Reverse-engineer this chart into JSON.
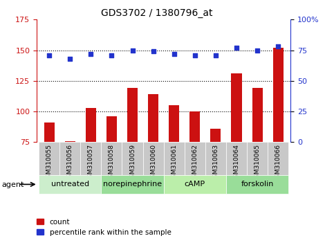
{
  "title": "GDS3702 / 1380796_at",
  "samples": [
    "GSM310055",
    "GSM310056",
    "GSM310057",
    "GSM310058",
    "GSM310059",
    "GSM310060",
    "GSM310061",
    "GSM310062",
    "GSM310063",
    "GSM310064",
    "GSM310065",
    "GSM310066"
  ],
  "count_values": [
    91,
    76,
    103,
    96,
    119,
    114,
    105,
    100,
    86,
    131,
    119,
    152
  ],
  "percentile_values": [
    71,
    68,
    72,
    71,
    75,
    74,
    72,
    71,
    71,
    77,
    75,
    78
  ],
  "ylim_left": [
    75,
    175
  ],
  "ylim_right": [
    0,
    100
  ],
  "yticks_left": [
    75,
    100,
    125,
    150,
    175
  ],
  "yticks_right": [
    0,
    25,
    50,
    75,
    100
  ],
  "agent_groups": [
    {
      "label": "untreated",
      "start": 0,
      "end": 3
    },
    {
      "label": "norepinephrine",
      "start": 3,
      "end": 6
    },
    {
      "label": "cAMP",
      "start": 6,
      "end": 9
    },
    {
      "label": "forskolin",
      "start": 9,
      "end": 12
    }
  ],
  "bar_color": "#cc1111",
  "dot_color": "#2233cc",
  "grid_color": "#000000",
  "axis_left_color": "#cc1111",
  "axis_right_color": "#2233cc",
  "tick_area_color": "#c8c8c8",
  "bar_bottom": 75,
  "legend_count_label": "count",
  "legend_pct_label": "percentile rank within the sample",
  "agent_label": "agent",
  "green_colors": [
    "#cceecc",
    "#99dd99",
    "#bbeeaa",
    "#99dd99"
  ]
}
